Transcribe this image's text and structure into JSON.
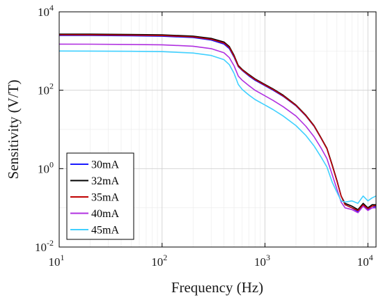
{
  "chart_data": {
    "type": "line",
    "xlabel": "Frequency (Hz)",
    "ylabel": "Sensitivity (V/T)",
    "xscale": "log",
    "yscale": "log",
    "xlim": [
      10,
      12000
    ],
    "ylim": [
      0.01,
      10000
    ],
    "x_ticks": [
      {
        "base": "10",
        "exp": "1",
        "value": 10
      },
      {
        "base": "10",
        "exp": "2",
        "value": 100
      },
      {
        "base": "10",
        "exp": "3",
        "value": 1000
      },
      {
        "base": "10",
        "exp": "4",
        "value": 10000
      }
    ],
    "y_ticks": [
      {
        "base": "10",
        "exp": "-2",
        "value": 0.01
      },
      {
        "base": "10",
        "exp": "0",
        "value": 1
      },
      {
        "base": "10",
        "exp": "2",
        "value": 100
      },
      {
        "base": "10",
        "exp": "4",
        "value": 10000
      }
    ],
    "grid": true,
    "legend_position": "bottom-left",
    "x": [
      10,
      20,
      50,
      100,
      200,
      300,
      400,
      450,
      500,
      550,
      600,
      700,
      800,
      1000,
      1200,
      1500,
      2000,
      2500,
      3000,
      3500,
      4000,
      4500,
      5000,
      5500,
      6000,
      7000,
      8000,
      9000,
      10000,
      11000,
      12000
    ],
    "series": [
      {
        "name": "30mA",
        "color": "#1a1aff",
        "values": [
          2500,
          2490,
          2440,
          2380,
          2200,
          1900,
          1500,
          1150,
          700,
          400,
          320,
          230,
          180,
          130,
          100,
          70,
          40,
          22,
          12,
          6,
          3.2,
          1.2,
          0.5,
          0.2,
          0.12,
          0.1,
          0.08,
          0.12,
          0.09,
          0.1,
          0.11
        ]
      },
      {
        "name": "32mA",
        "color": "#000000",
        "values": [
          2700,
          2690,
          2640,
          2580,
          2400,
          2100,
          1700,
          1300,
          780,
          430,
          340,
          250,
          195,
          140,
          108,
          75,
          42,
          23,
          12.5,
          6.2,
          3.3,
          1.25,
          0.5,
          0.2,
          0.13,
          0.11,
          0.09,
          0.13,
          0.1,
          0.12,
          0.12
        ]
      },
      {
        "name": "35mA",
        "color": "#c00000",
        "values": [
          2600,
          2590,
          2540,
          2480,
          2300,
          2000,
          1600,
          1230,
          740,
          410,
          330,
          240,
          188,
          135,
          104,
          72,
          41,
          22.5,
          12.2,
          6.1,
          3.2,
          1.2,
          0.48,
          0.2,
          0.12,
          0.1,
          0.085,
          0.12,
          0.095,
          0.11,
          0.115
        ]
      },
      {
        "name": "40mA",
        "color": "#b030e0",
        "values": [
          1500,
          1495,
          1470,
          1440,
          1330,
          1150,
          900,
          680,
          420,
          230,
          180,
          130,
          100,
          72,
          55,
          38,
          22,
          12,
          6.5,
          3.4,
          1.8,
          0.7,
          0.3,
          0.14,
          0.1,
          0.09,
          0.075,
          0.11,
          0.085,
          0.1,
          0.1
        ]
      },
      {
        "name": "45mA",
        "color": "#40d0ff",
        "values": [
          1000,
          998,
          985,
          965,
          890,
          770,
          600,
          450,
          270,
          140,
          105,
          75,
          58,
          42,
          32,
          22,
          12.5,
          7,
          3.8,
          2,
          1.1,
          0.45,
          0.25,
          0.15,
          0.14,
          0.15,
          0.13,
          0.2,
          0.15,
          0.18,
          0.2
        ]
      }
    ]
  }
}
